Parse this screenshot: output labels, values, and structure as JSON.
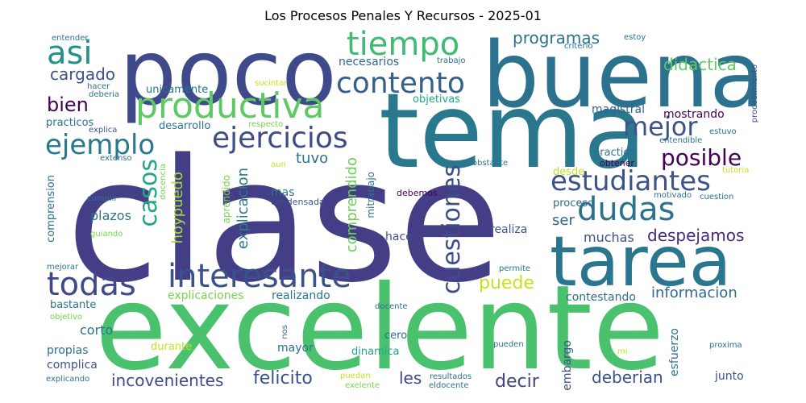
{
  "title": "Los Procesos Penales Y Recursos - 2025-01",
  "words": [
    {
      "text": "clase",
      "color": "#433e85"
    },
    {
      "text": "excelente",
      "color": "#4ac16d"
    },
    {
      "text": "tema",
      "color": "#2a788e"
    },
    {
      "text": "buena",
      "color": "#2c728e"
    },
    {
      "text": "poco",
      "color": "#3e4a89"
    },
    {
      "text": "tarea",
      "color": "#2a768e"
    },
    {
      "text": "productiva",
      "color": "#5ec962"
    },
    {
      "text": "interesante",
      "color": "#3b518b"
    },
    {
      "text": "todas",
      "color": "#3e4989"
    },
    {
      "text": "tiempo",
      "color": "#3fbc73"
    },
    {
      "text": "contento",
      "color": "#355f8d"
    },
    {
      "text": "asi",
      "color": "#21918c"
    },
    {
      "text": "ejercicios",
      "color": "#3e4c8a"
    },
    {
      "text": "ejemplo",
      "color": "#2a788e"
    },
    {
      "text": "estudiantes",
      "color": "#3b528b"
    },
    {
      "text": "dudas",
      "color": "#2c728e"
    },
    {
      "text": "mejor",
      "color": "#3b528b"
    },
    {
      "text": "cuestiones",
      "color": "#3e4c8a"
    },
    {
      "text": "casos",
      "color": "#22a785"
    },
    {
      "text": "posible",
      "color": "#440154"
    },
    {
      "text": "programas",
      "color": "#2d708e"
    },
    {
      "text": "didactica",
      "color": "#5ec962"
    },
    {
      "text": "cargado",
      "color": "#3b528b"
    },
    {
      "text": "bien",
      "color": "#440154"
    },
    {
      "text": "puede",
      "color": "#c8e020"
    },
    {
      "text": "despejamos",
      "color": "#482878"
    },
    {
      "text": "comprendido",
      "color": "#6ece58"
    },
    {
      "text": "explicacion",
      "color": "#2a788e"
    },
    {
      "text": "hoypuedo",
      "color": "#a0da39"
    },
    {
      "text": "felicito",
      "color": "#3b528b"
    },
    {
      "text": "incovenientes",
      "color": "#3e4c8a"
    },
    {
      "text": "deberian",
      "color": "#3b518b"
    },
    {
      "text": "informacion",
      "color": "#31688e"
    },
    {
      "text": "decir",
      "color": "#414487"
    },
    {
      "text": "muchas",
      "color": "#3b528b"
    },
    {
      "text": "tuvo",
      "color": "#2c728e"
    },
    {
      "text": "ser",
      "color": "#30678d"
    },
    {
      "text": "les",
      "color": "#414487"
    },
    {
      "text": "necesarios",
      "color": "#31688e"
    },
    {
      "text": "magistral",
      "color": "#355f8d"
    },
    {
      "text": "mostrando",
      "color": "#440154"
    },
    {
      "text": "practica",
      "color": "#2c728e"
    },
    {
      "text": "realiza",
      "color": "#3b528b"
    },
    {
      "text": "proceso",
      "color": "#31688e"
    },
    {
      "text": "plazos",
      "color": "#2c728e"
    },
    {
      "text": "hace",
      "color": "#3b528b"
    },
    {
      "text": "mas",
      "color": "#2c728e"
    },
    {
      "text": "realizando",
      "color": "#2a788e"
    },
    {
      "text": "contestando",
      "color": "#2d708e"
    },
    {
      "text": "explicaciones",
      "color": "#7ad151"
    },
    {
      "text": "corto",
      "color": "#2c728e"
    },
    {
      "text": "propias",
      "color": "#2c728e"
    },
    {
      "text": "complica",
      "color": "#3b528b"
    },
    {
      "text": "bastante",
      "color": "#2c728e"
    },
    {
      "text": "mayor",
      "color": "#2c728e"
    },
    {
      "text": "cero",
      "color": "#31688e"
    },
    {
      "text": "dinamica",
      "color": "#22a785"
    },
    {
      "text": "durante",
      "color": "#c8e020"
    },
    {
      "text": "embargo",
      "color": "#3b528b"
    },
    {
      "text": "esfuerzo",
      "color": "#2c728e"
    },
    {
      "text": "junto",
      "color": "#3b528b"
    },
    {
      "text": "unicamente",
      "color": "#2c728e"
    },
    {
      "text": "desarrollo",
      "color": "#2c728e"
    },
    {
      "text": "practicos",
      "color": "#2c728e"
    },
    {
      "text": "objetivas",
      "color": "#22a785"
    },
    {
      "text": "comprension",
      "color": "#2c728e"
    },
    {
      "text": "aprendido",
      "color": "#7ad151"
    },
    {
      "text": "mitrabajo",
      "color": "#2c728e"
    },
    {
      "text": "condensada",
      "color": "#3b528b"
    },
    {
      "text": "debemos",
      "color": "#440154"
    },
    {
      "text": "desde",
      "color": "#c8e020"
    },
    {
      "text": "obtener",
      "color": "#440154"
    },
    {
      "text": "entendible",
      "color": "#2c728e"
    },
    {
      "text": "estuvo",
      "color": "#2c728e"
    },
    {
      "text": "motivado",
      "color": "#2c728e"
    },
    {
      "text": "cuestion",
      "color": "#2c728e"
    },
    {
      "text": "procedimiento",
      "color": "#3b528b"
    },
    {
      "text": "tutoria",
      "color": "#c8e020"
    },
    {
      "text": "extenso",
      "color": "#2c728e"
    },
    {
      "text": "docencia",
      "color": "#7ad151"
    },
    {
      "text": "aun",
      "color": "#c8e020"
    },
    {
      "text": "obstante",
      "color": "#2a788e"
    },
    {
      "text": "cumplir",
      "color": "#2c728e"
    },
    {
      "text": "guiando",
      "color": "#7ad151"
    },
    {
      "text": "mejorar",
      "color": "#2c728e"
    },
    {
      "text": "objetivo",
      "color": "#7ad151"
    },
    {
      "text": "explicando",
      "color": "#2c728e"
    },
    {
      "text": "exelente",
      "color": "#7ad151"
    },
    {
      "text": "eldocente",
      "color": "#2c728e"
    },
    {
      "text": "puedan",
      "color": "#c8e020"
    },
    {
      "text": "resultados",
      "color": "#2c728e"
    },
    {
      "text": "docente",
      "color": "#2c728e"
    },
    {
      "text": "nos",
      "color": "#2c728e"
    },
    {
      "text": "pueden",
      "color": "#2c728e"
    },
    {
      "text": "mi",
      "color": "#c8e020"
    },
    {
      "text": "proxima",
      "color": "#2c728e"
    },
    {
      "text": "permite",
      "color": "#2c728e"
    },
    {
      "text": "entender",
      "color": "#2c728e"
    },
    {
      "text": "hacer",
      "color": "#2c728e"
    },
    {
      "text": "deberia",
      "color": "#2c728e"
    },
    {
      "text": "explica",
      "color": "#3b528b"
    },
    {
      "text": "sucintar",
      "color": "#c8e020"
    },
    {
      "text": "respecto",
      "color": "#7ad151"
    },
    {
      "text": "trabajo",
      "color": "#2c728e"
    },
    {
      "text": "estoy",
      "color": "#2c728e"
    },
    {
      "text": "criterio",
      "color": "#2c728e"
    }
  ]
}
